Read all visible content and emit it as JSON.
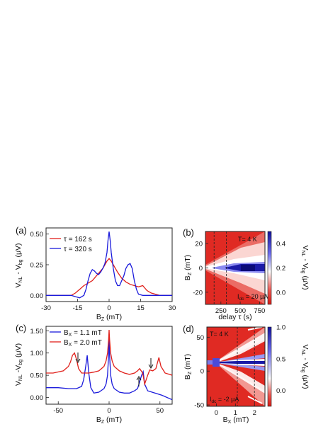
{
  "chart_data": [
    {
      "panel_label": "(a)",
      "type": "line",
      "xlabel": "B_Z (mT)",
      "ylabel": "V_NL - V_bg (μV)",
      "xlim": [
        -30,
        30
      ],
      "ylim": [
        -0.05,
        0.55
      ],
      "xticks": [
        "-30",
        "-15",
        "0",
        "15",
        "30"
      ],
      "yticks": [
        "0.00",
        "0.25",
        "0.50"
      ],
      "grid": false,
      "legend": "top-left",
      "series": [
        {
          "name": "τ = 162 s",
          "color": "#e0201b",
          "x": [
            -30,
            -27,
            -24,
            -21,
            -18,
            -16,
            -14,
            -12,
            -10,
            -8,
            -6,
            -4,
            -3,
            -2,
            -1,
            0,
            1,
            2,
            3,
            4,
            6,
            8,
            10,
            12,
            14,
            16,
            18,
            20,
            22,
            24,
            27,
            30
          ],
          "y": [
            0.0,
            0.0,
            0.0,
            0.0,
            0.0,
            0.02,
            0.05,
            0.08,
            0.1,
            0.12,
            0.16,
            0.2,
            0.22,
            0.25,
            0.28,
            0.3,
            0.28,
            0.25,
            0.22,
            0.19,
            0.14,
            0.11,
            0.09,
            0.08,
            0.07,
            0.08,
            0.04,
            0.02,
            0.01,
            0.0,
            0.0,
            0.0
          ]
        },
        {
          "name": "τ = 320 s",
          "color": "#1a1adb",
          "x": [
            -30,
            -27,
            -24,
            -21,
            -18,
            -16,
            -14,
            -12,
            -11,
            -10,
            -9,
            -8,
            -7,
            -6,
            -5,
            -4,
            -3,
            -2,
            -1,
            -0.5,
            0,
            0.5,
            1,
            2,
            3,
            4,
            5,
            6,
            7,
            8,
            9,
            10,
            11,
            12,
            13,
            14,
            16,
            18,
            21,
            24,
            27,
            30
          ],
          "y": [
            0.0,
            0.0,
            0.0,
            0.0,
            0.0,
            -0.01,
            -0.02,
            0.0,
            0.05,
            0.12,
            0.18,
            0.21,
            0.2,
            0.18,
            0.17,
            0.19,
            0.22,
            0.26,
            0.35,
            0.45,
            0.52,
            0.45,
            0.35,
            0.22,
            0.12,
            0.08,
            0.08,
            0.12,
            0.16,
            0.22,
            0.25,
            0.26,
            0.22,
            0.12,
            0.05,
            0.01,
            0.0,
            0.0,
            0.0,
            0.0,
            0.0,
            0.0
          ]
        }
      ]
    },
    {
      "panel_label": "(b)",
      "type": "heatmap",
      "xlabel": "delay τ (s)",
      "ylabel": "B_Z (mT)",
      "xlim": [
        50,
        820
      ],
      "ylim": [
        -30,
        30
      ],
      "xticks": [
        "250",
        "500",
        "750"
      ],
      "yticks": [
        "20",
        "0",
        "-20"
      ],
      "dashed_lines_x": [
        162,
        320
      ],
      "annotations": [
        "T= 4 K",
        "I_dc = 20 μA"
      ],
      "colorbar": {
        "label": "V_NL - V_bg (μV)",
        "ticks": [
          "0.4",
          "0.2",
          "0.0"
        ],
        "range": [
          -0.1,
          0.5
        ]
      }
    },
    {
      "panel_label": "(c)",
      "type": "line",
      "xlabel": "B_Z (mT)",
      "ylabel": "V_NL - V_bg (μV)",
      "xlim": [
        -62,
        62
      ],
      "ylim": [
        -0.15,
        1.6
      ],
      "xticks": [
        "-50",
        "0",
        "50"
      ],
      "yticks": [
        "0.00",
        "0.50",
        "1.00",
        "1.50"
      ],
      "grid": false,
      "legend": "top-left",
      "annotations": [
        "↓ near -28 mT",
        "↑ near 27 mT",
        "↓ near 40 mT"
      ],
      "series": [
        {
          "name": "B_X = 1.1 mT",
          "color": "#1a1adb",
          "x": [
            -62,
            -50,
            -40,
            -32,
            -27,
            -25,
            -23,
            -21.5,
            -20,
            -18,
            -15,
            -10,
            -5,
            -3,
            -1.5,
            -0.5,
            0,
            0.5,
            1.5,
            3,
            5,
            10,
            15,
            20,
            25,
            28,
            30,
            32,
            33.5,
            35,
            38,
            45,
            52,
            62
          ],
          "y": [
            0.22,
            0.22,
            0.2,
            0.2,
            0.25,
            0.4,
            0.7,
            0.95,
            0.55,
            0.22,
            0.1,
            0.12,
            0.2,
            0.3,
            0.5,
            0.95,
            1.4,
            0.95,
            0.5,
            0.3,
            0.2,
            0.12,
            0.1,
            0.1,
            0.15,
            0.2,
            0.35,
            0.5,
            0.58,
            0.3,
            0.15,
            0.1,
            0.05,
            -0.05
          ]
        },
        {
          "name": "B_X = 2.0 mT",
          "color": "#e0201b",
          "x": [
            -62,
            -55,
            -45,
            -40,
            -38,
            -36,
            -34,
            -32,
            -30,
            -27,
            -24,
            -20,
            -15,
            -10,
            -5,
            -3,
            -1.5,
            -0.5,
            0,
            0.5,
            1.5,
            3,
            5,
            10,
            15,
            20,
            25,
            28,
            30,
            33,
            35,
            38,
            40,
            43,
            46,
            49,
            51,
            55,
            62
          ],
          "y": [
            0.55,
            0.55,
            0.6,
            0.7,
            0.8,
            0.95,
            1.0,
            0.85,
            0.65,
            0.55,
            0.55,
            0.55,
            0.57,
            0.6,
            0.7,
            0.82,
            1.0,
            1.3,
            1.52,
            1.3,
            1.0,
            0.82,
            0.7,
            0.6,
            0.55,
            0.52,
            0.55,
            0.6,
            0.65,
            0.55,
            0.3,
            0.5,
            0.62,
            0.6,
            0.65,
            0.9,
            0.7,
            0.55,
            0.5
          ]
        }
      ]
    },
    {
      "panel_label": "(d)",
      "type": "heatmap",
      "xlabel": "B_X (mT)",
      "ylabel": "B_Z (mT)",
      "xlim": [
        -0.5,
        2.55
      ],
      "ylim": [
        -52,
        65
      ],
      "xticks": [
        "0",
        "1",
        "2"
      ],
      "yticks": [
        "50",
        "0",
        "-50"
      ],
      "dashed_lines_x": [
        1.1,
        2.0
      ],
      "annotations": [
        "T= 4 K",
        "I_dc = -2 μA"
      ],
      "colorbar": {
        "label": "V_NL - V_bg (μV)",
        "ticks": [
          "1.0",
          "0.5",
          "0.0"
        ],
        "range": [
          -0.25,
          1.0
        ]
      }
    }
  ]
}
